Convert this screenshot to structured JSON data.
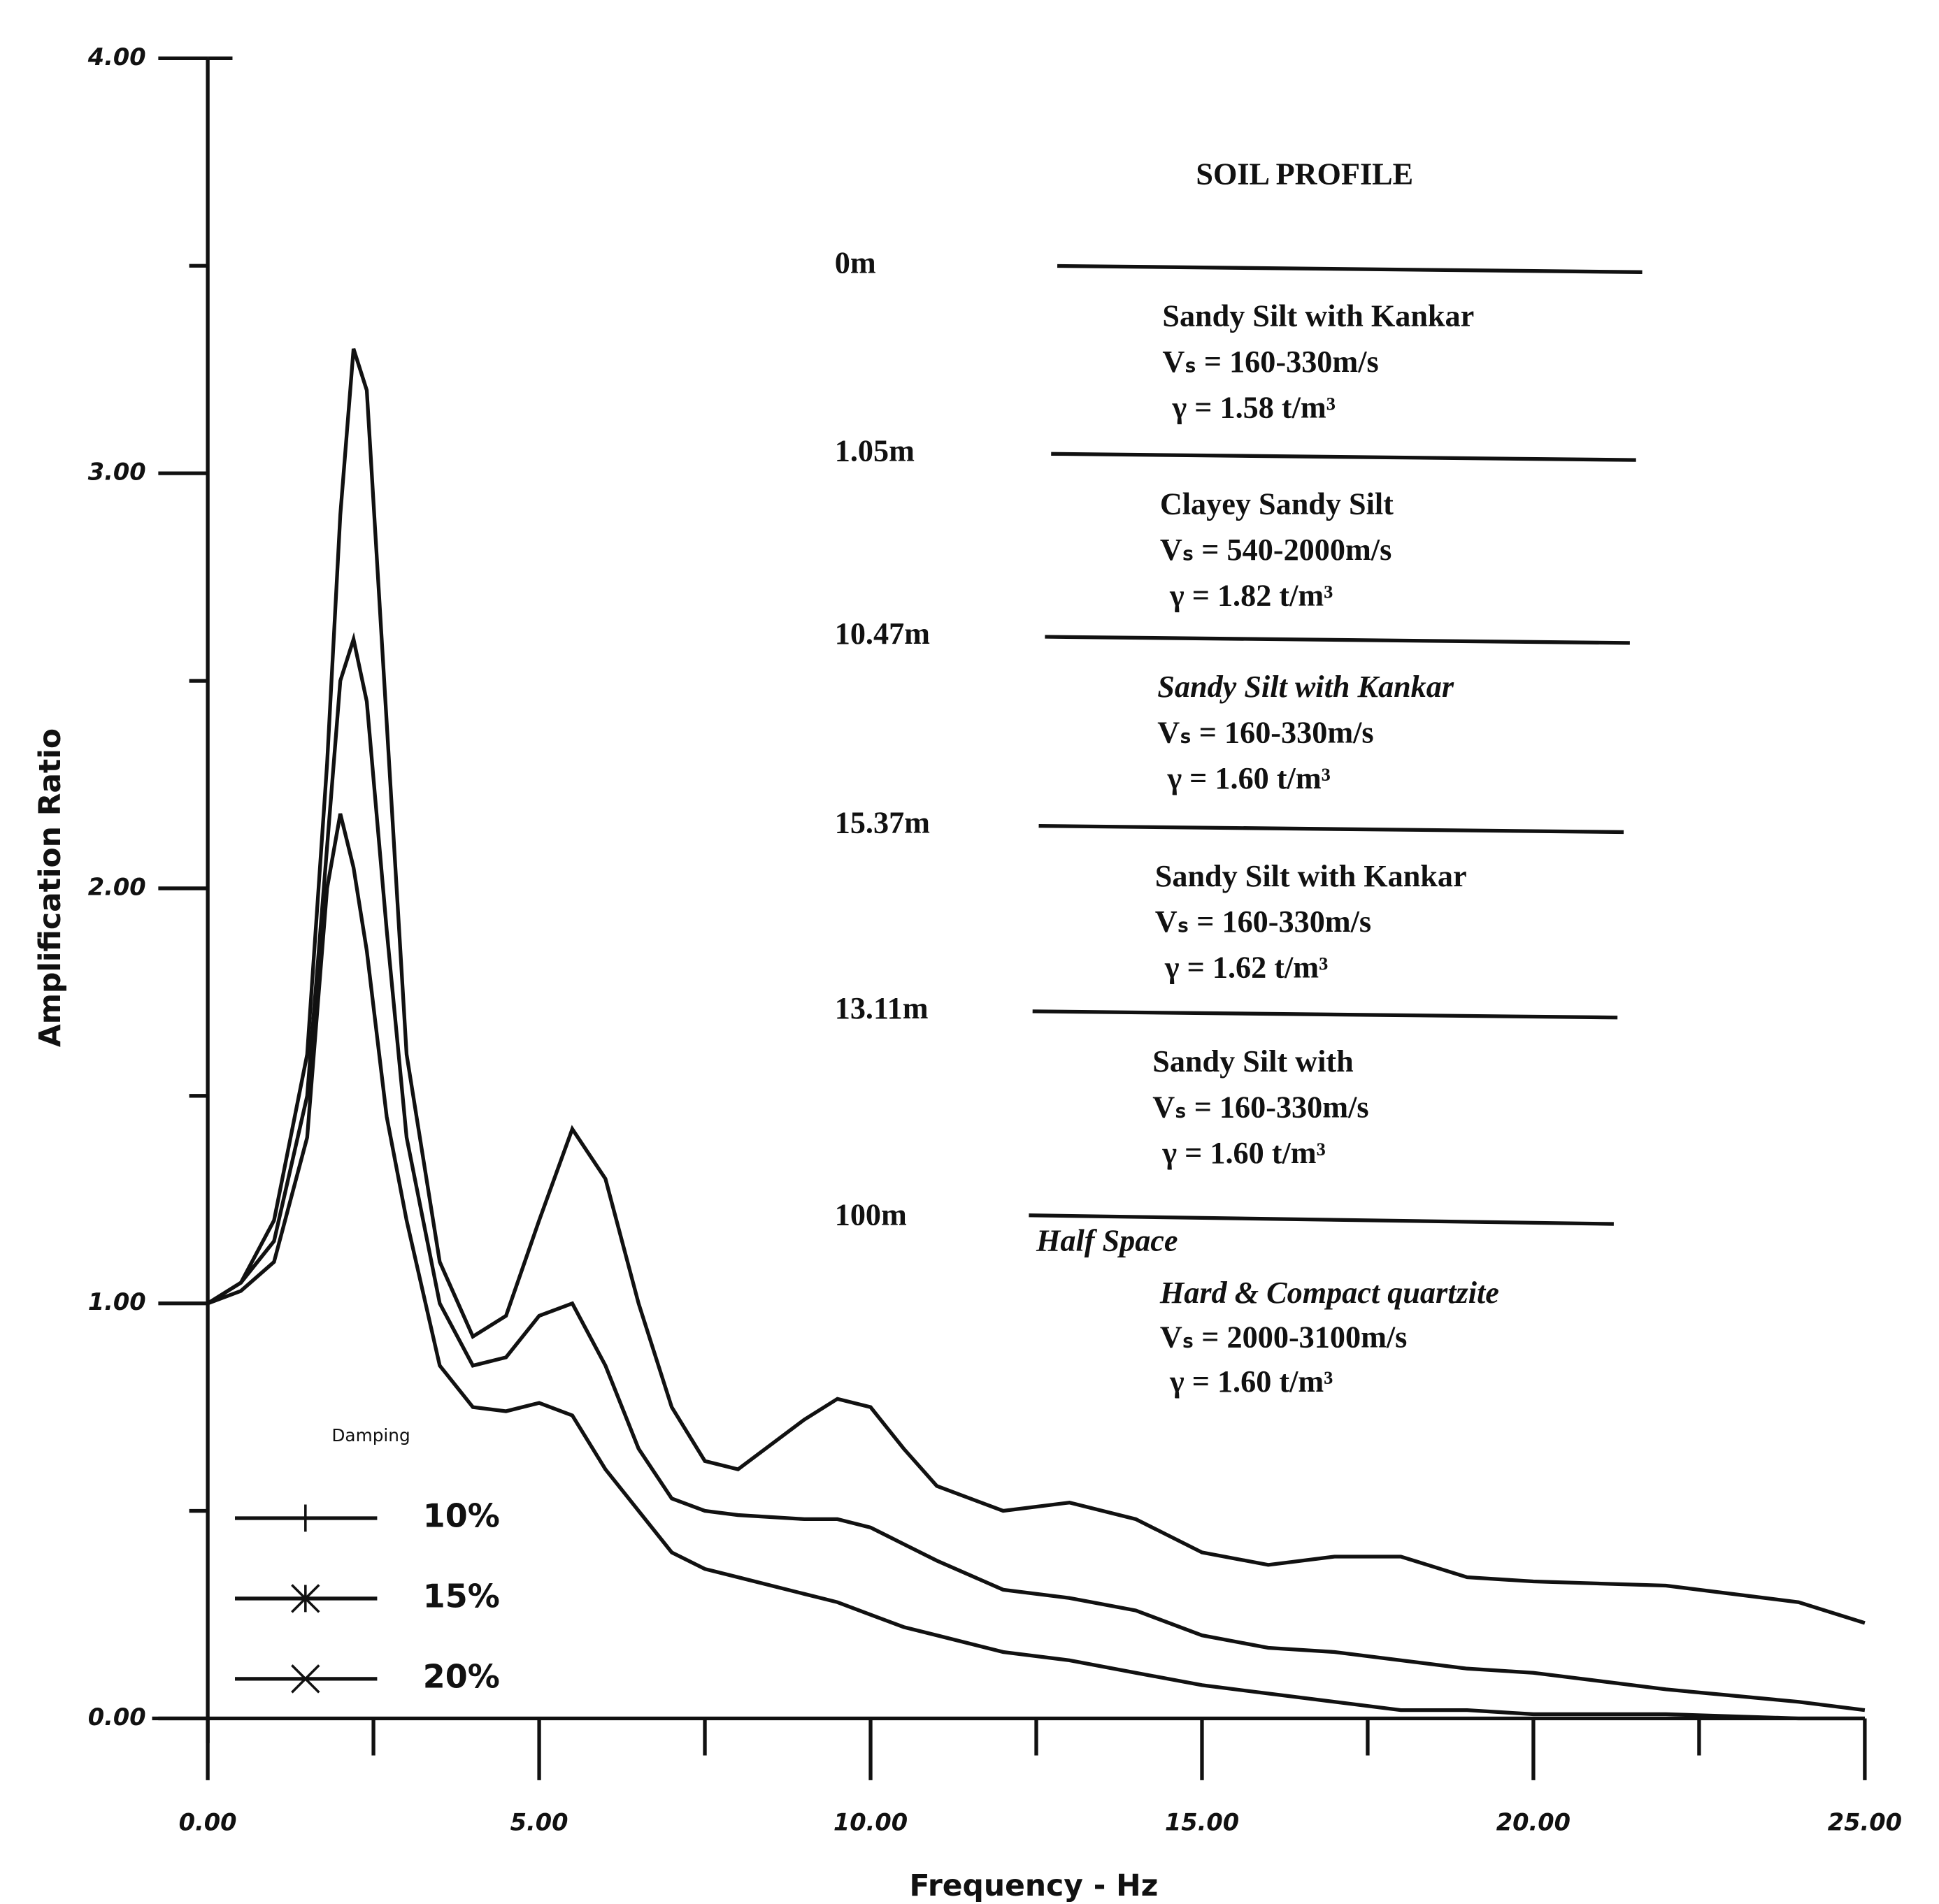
{
  "chart_data": {
    "type": "line",
    "y_label": "Amplification Ratio",
    "x_label": "Frequency - Hz",
    "xlim": [
      0,
      25
    ],
    "ylim": [
      0,
      4
    ],
    "xticks": [
      {
        "value": 0,
        "label": "0.00"
      },
      {
        "value": 5,
        "label": "5.00"
      },
      {
        "value": 10,
        "label": "10.00"
      },
      {
        "value": 15,
        "label": "15.00"
      },
      {
        "value": 20,
        "label": "20.00"
      },
      {
        "value": 25,
        "label": "25.00"
      }
    ],
    "yticks": [
      {
        "value": 0,
        "label": "0.00"
      },
      {
        "value": 1,
        "label": "1.00"
      },
      {
        "value": 2,
        "label": "2.00"
      },
      {
        "value": 3,
        "label": "3.00"
      },
      {
        "value": 4,
        "label": "4.00"
      }
    ],
    "xminorticks": [
      2.5,
      7.5,
      12.5,
      17.5,
      22.5
    ],
    "yminorticks": [
      0.5,
      1.5,
      2.5,
      3.5
    ],
    "legend_title": "Damping",
    "x": [
      0,
      0.5,
      1,
      1.5,
      1.8,
      2,
      2.2,
      2.4,
      2.7,
      3,
      3.5,
      4,
      4.5,
      5,
      5.5,
      6,
      6.5,
      7,
      7.5,
      8,
      9,
      9.5,
      10,
      10.5,
      11,
      12,
      13,
      14,
      15,
      16,
      17,
      18,
      19,
      20,
      22,
      24,
      25
    ],
    "series": [
      {
        "name": "10%",
        "color": "#111111",
        "marker": "plus",
        "values": [
          1.0,
          1.05,
          1.2,
          1.6,
          2.3,
          2.9,
          3.3,
          3.2,
          2.4,
          1.6,
          1.1,
          0.92,
          0.97,
          1.2,
          1.42,
          1.3,
          1.0,
          0.75,
          0.62,
          0.6,
          0.72,
          0.77,
          0.75,
          0.65,
          0.56,
          0.5,
          0.52,
          0.48,
          0.4,
          0.37,
          0.39,
          0.39,
          0.34,
          0.33,
          0.32,
          0.28,
          0.23
        ]
      },
      {
        "name": "15%",
        "color": "#111111",
        "marker": "asterisk",
        "values": [
          1.0,
          1.05,
          1.15,
          1.5,
          2.1,
          2.5,
          2.6,
          2.45,
          1.9,
          1.4,
          1.0,
          0.85,
          0.87,
          0.97,
          1.0,
          0.85,
          0.65,
          0.53,
          0.5,
          0.49,
          0.48,
          0.48,
          0.46,
          0.42,
          0.38,
          0.31,
          0.29,
          0.26,
          0.2,
          0.17,
          0.16,
          0.14,
          0.12,
          0.11,
          0.07,
          0.04,
          0.02
        ]
      },
      {
        "name": "20%",
        "color": "#111111",
        "marker": "cross",
        "values": [
          1.0,
          1.03,
          1.1,
          1.4,
          2.0,
          2.18,
          2.05,
          1.85,
          1.45,
          1.2,
          0.85,
          0.75,
          0.74,
          0.76,
          0.73,
          0.6,
          0.5,
          0.4,
          0.36,
          0.34,
          0.3,
          0.28,
          0.25,
          0.22,
          0.2,
          0.16,
          0.14,
          0.11,
          0.08,
          0.06,
          0.04,
          0.02,
          0.02,
          0.01,
          0.01,
          0.0,
          0.0
        ]
      }
    ],
    "soil_profile": {
      "title": "SOIL PROFILE",
      "layers": [
        {
          "depth": "0m",
          "lines": [
            "Sandy Silt with Kankar",
            "Vₛ = 160-330m/s",
            "γ = 1.58 t/m³"
          ]
        },
        {
          "depth": "1.05m",
          "lines": [
            "Clayey Sandy Silt",
            "Vₛ = 540-2000m/s",
            "γ = 1.82 t/m³"
          ]
        },
        {
          "depth": "10.47m",
          "lines": [
            "Sandy Silt with Kankar",
            "Vₛ = 160-330m/s",
            "γ = 1.60 t/m³"
          ]
        },
        {
          "depth": "15.37m",
          "lines": [
            "Sandy Silt with Kankar",
            "Vₛ = 160-330m/s",
            "γ = 1.62 t/m³"
          ]
        },
        {
          "depth": "13.11m",
          "lines": [
            "Sandy Silt with",
            "Vₛ = 160-330m/s",
            "γ = 1.60 t/m³"
          ]
        }
      ],
      "base_depth": "100m",
      "half_space": "Half Space",
      "base_lines": [
        "Hard & Compact quartzite",
        "Vₛ = 2000-3100m/s",
        "γ = 1.60 t/m³"
      ]
    }
  }
}
